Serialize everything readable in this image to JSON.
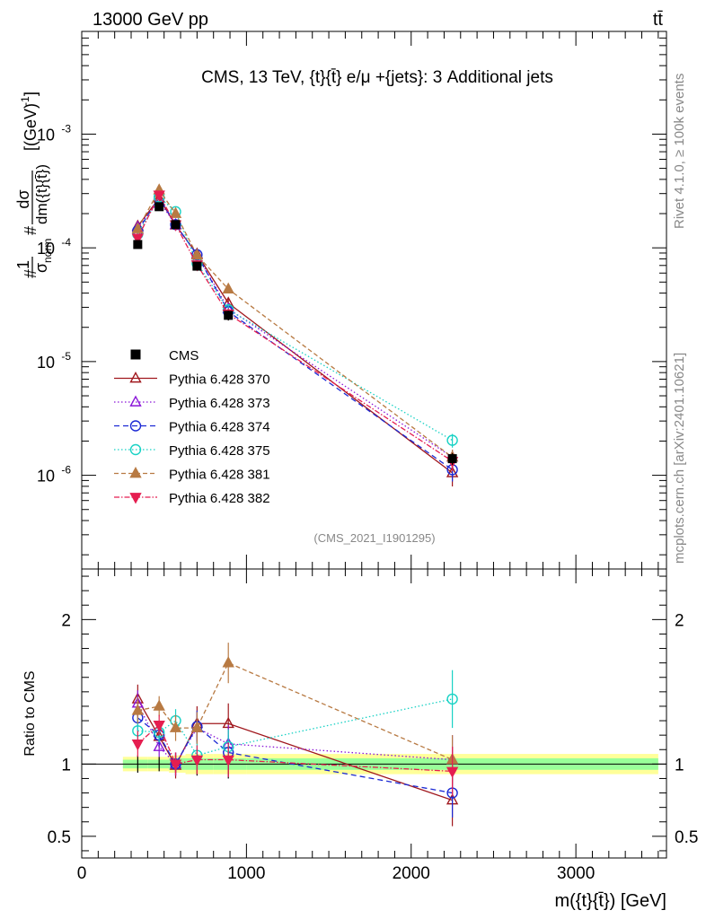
{
  "header": {
    "energy_label": "13000 GeV pp",
    "process_label": "tt̄"
  },
  "side_labels": {
    "rivet": "Rivet 4.1.0, ≥ 100k events",
    "mcplots": "mcplots.cern.ch [arXiv:2401.10621]"
  },
  "chart_data": {
    "type": "line",
    "title": "CMS, 13 TeV, {t}{t̄} e/μ +{jets}: 3 Additional jets",
    "analysis_id": "(CMS_2021_I1901295)",
    "xlabel": "m({t}{t̄}) [GeV]",
    "ylabel_main": "#1/σnorm #dσ/dm({t}{t̄}) [(GeV)^-1]",
    "ylabel_main_parts": {
      "one": "1",
      "sigma": "σ",
      "norm": "norm",
      "dsigma": "dσ",
      "dm": "dm({t}{t̄})",
      "hash": "#",
      "units": "[(GeV)",
      "units_exp": "-1",
      "units_close": "]"
    },
    "ylabel_ratio": "Ratio to CMS",
    "xlim": [
      0,
      3550
    ],
    "ylim_main": [
      1.5e-07,
      0.008
    ],
    "ylim_ratio": [
      0.35,
      2.35
    ],
    "x_ticks": [
      {
        "value": 0,
        "label": "0"
      },
      {
        "value": 1000,
        "label": "1000"
      },
      {
        "value": 2000,
        "label": "2000"
      },
      {
        "value": 3000,
        "label": "3000"
      }
    ],
    "y_ticks_main": [
      {
        "value": 1e-06,
        "base": "10",
        "exp": "-6"
      },
      {
        "value": 1e-05,
        "base": "10",
        "exp": "-5"
      },
      {
        "value": 0.0001,
        "base": "10",
        "exp": "-4"
      },
      {
        "value": 0.001,
        "base": "10",
        "exp": "-3"
      }
    ],
    "y_ticks_ratio": [
      {
        "value": 0.5,
        "label": "0.5"
      },
      {
        "value": 1,
        "label": "1"
      },
      {
        "value": 2,
        "label": "2"
      }
    ],
    "x": [
      340,
      470,
      570,
      700,
      890,
      2250
    ],
    "bin_edges": [
      250,
      400,
      530,
      630,
      800,
      1000,
      3500
    ],
    "data": {
      "name": "CMS",
      "values": [
        0.000107,
        0.00023,
        0.00016,
        6.9e-05,
        2.55e-05,
        1.4e-06
      ],
      "errors": [
        0.06,
        0.05,
        0.06,
        0.08,
        0.1,
        0.12
      ]
    },
    "ratio_bands": {
      "stat_half": [
        0.03,
        0.03,
        0.04,
        0.04,
        0.04,
        0.04
      ],
      "total_half": [
        0.05,
        0.05,
        0.06,
        0.07,
        0.07,
        0.07
      ]
    },
    "series": [
      {
        "name": "Pythia 6.428 370",
        "color": "#a0171d",
        "dash": "",
        "marker": "triangle-open",
        "ratio": [
          1.45,
          1.19,
          0.99,
          1.28,
          1.28,
          0.75
        ],
        "ratio_err": [
          0.1,
          0.08,
          0.09,
          0.12,
          0.14,
          0.18
        ]
      },
      {
        "name": "Pythia 6.428 373",
        "color": "#8a15d8",
        "dash": "1.5,2.5",
        "marker": "triangle-open",
        "ratio": [
          1.42,
          1.12,
          1.0,
          1.25,
          1.14,
          1.03
        ],
        "ratio_err": [
          0.09,
          0.07,
          0.08,
          0.11,
          0.13,
          0.17
        ]
      },
      {
        "name": "Pythia 6.428 374",
        "color": "#1b29d4",
        "dash": "6,4",
        "marker": "circle-open",
        "ratio": [
          1.32,
          1.2,
          1.0,
          1.26,
          1.08,
          0.8
        ],
        "ratio_err": [
          0.09,
          0.07,
          0.08,
          0.11,
          0.12,
          0.17
        ]
      },
      {
        "name": "Pythia 6.428 375",
        "color": "#19d2c5",
        "dash": "1.5,2.5",
        "marker": "circle-open",
        "ratio": [
          1.23,
          1.22,
          1.3,
          1.06,
          1.12,
          1.45
        ],
        "ratio_err": [
          0.09,
          0.07,
          0.08,
          0.1,
          0.12,
          0.2
        ]
      },
      {
        "name": "Pythia 6.428 381",
        "color": "#b87a43",
        "dash": "5,3",
        "marker": "triangle-filled",
        "ratio": [
          1.37,
          1.4,
          1.25,
          1.25,
          1.7,
          1.03
        ],
        "ratio_err": [
          0.09,
          0.07,
          0.09,
          0.11,
          0.14,
          0.17
        ]
      },
      {
        "name": "Pythia 6.428 382",
        "color": "#e51e50",
        "dash": "6,2,1.5,2",
        "marker": "triangle-down-filled",
        "ratio": [
          1.14,
          1.27,
          1.0,
          1.03,
          1.03,
          0.95
        ],
        "ratio_err": [
          0.09,
          0.07,
          0.08,
          0.1,
          0.12,
          0.17
        ]
      }
    ]
  }
}
